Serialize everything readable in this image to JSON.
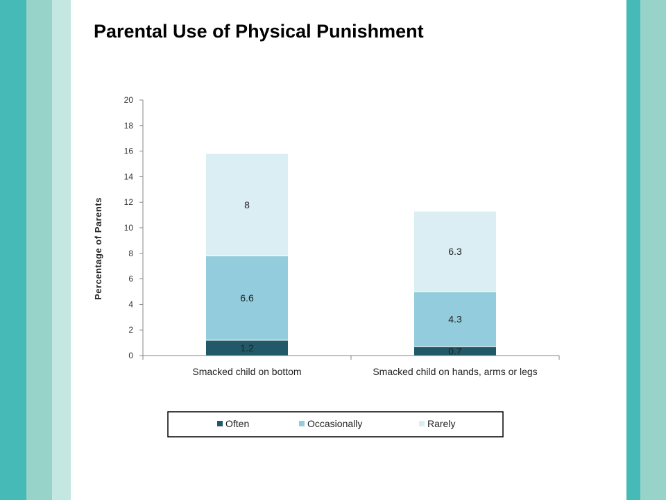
{
  "page": {
    "title": "Parental Use of Physical Punishment",
    "colors": {
      "stripe_dark": "#45BAB6",
      "stripe_light": "#97D3C9",
      "stripe_pale": "#C4E7E2"
    }
  },
  "chart_data": {
    "type": "bar",
    "stacked": true,
    "title": "",
    "xlabel": "",
    "ylabel": "Percentage  of  Parents",
    "ylim": [
      0,
      20
    ],
    "yticks": [
      0,
      2,
      4,
      6,
      8,
      10,
      12,
      14,
      16,
      18,
      20
    ],
    "grid": false,
    "legend": "bottom",
    "categories": [
      "Smacked child on bottom",
      "Smacked child on hands, arms or legs"
    ],
    "series": [
      {
        "name": "Often",
        "values": [
          1.2,
          0.7
        ],
        "color": "#215968"
      },
      {
        "name": "Occasionally",
        "values": [
          6.6,
          4.3
        ],
        "color": "#93CDDD"
      },
      {
        "name": "Rarely",
        "values": [
          8,
          6.3
        ],
        "color": "#DAEEF3"
      }
    ]
  }
}
